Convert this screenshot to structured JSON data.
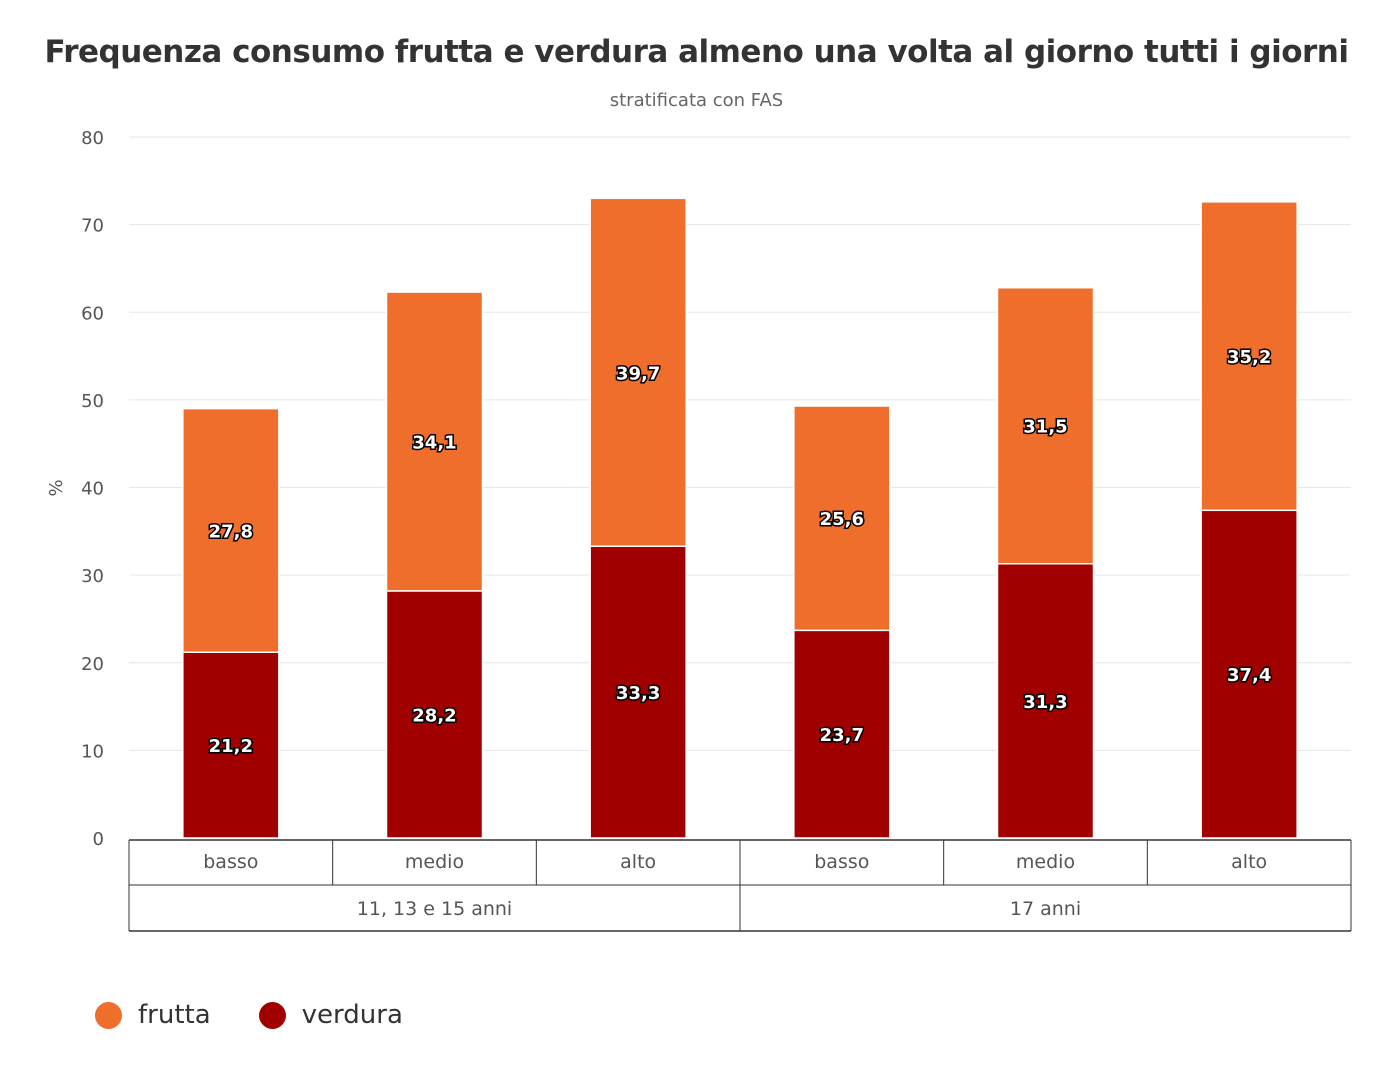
{
  "chart_data": {
    "type": "bar",
    "stacked": true,
    "title": "Frequenza consumo frutta e verdura almeno una volta al giorno tutti i giorni",
    "subtitle": "stratificata con FAS",
    "ylabel": "%",
    "xlabel": "",
    "ylim": [
      0,
      80
    ],
    "yticks": [
      0,
      10,
      20,
      30,
      40,
      50,
      60,
      70,
      80
    ],
    "grid": true,
    "legend_position": "bottom-left",
    "categories": [
      "basso",
      "medio",
      "alto",
      "basso",
      "medio",
      "alto"
    ],
    "groups": [
      {
        "label": "11, 13 e 15 anni",
        "span": 3
      },
      {
        "label": "17 anni",
        "span": 3
      }
    ],
    "series": [
      {
        "name": "verdura",
        "color": "#a00000",
        "values": [
          21.2,
          28.2,
          33.3,
          23.7,
          31.3,
          37.4
        ],
        "labels": [
          "21,2",
          "28,2",
          "33,3",
          "23,7",
          "31,3",
          "37,4"
        ]
      },
      {
        "name": "frutta",
        "color": "#ef6e2b",
        "values": [
          27.8,
          34.1,
          39.7,
          25.6,
          31.5,
          35.2
        ],
        "labels": [
          "27,8",
          "34,1",
          "39,7",
          "25,6",
          "31,5",
          "35,2"
        ]
      }
    ]
  }
}
